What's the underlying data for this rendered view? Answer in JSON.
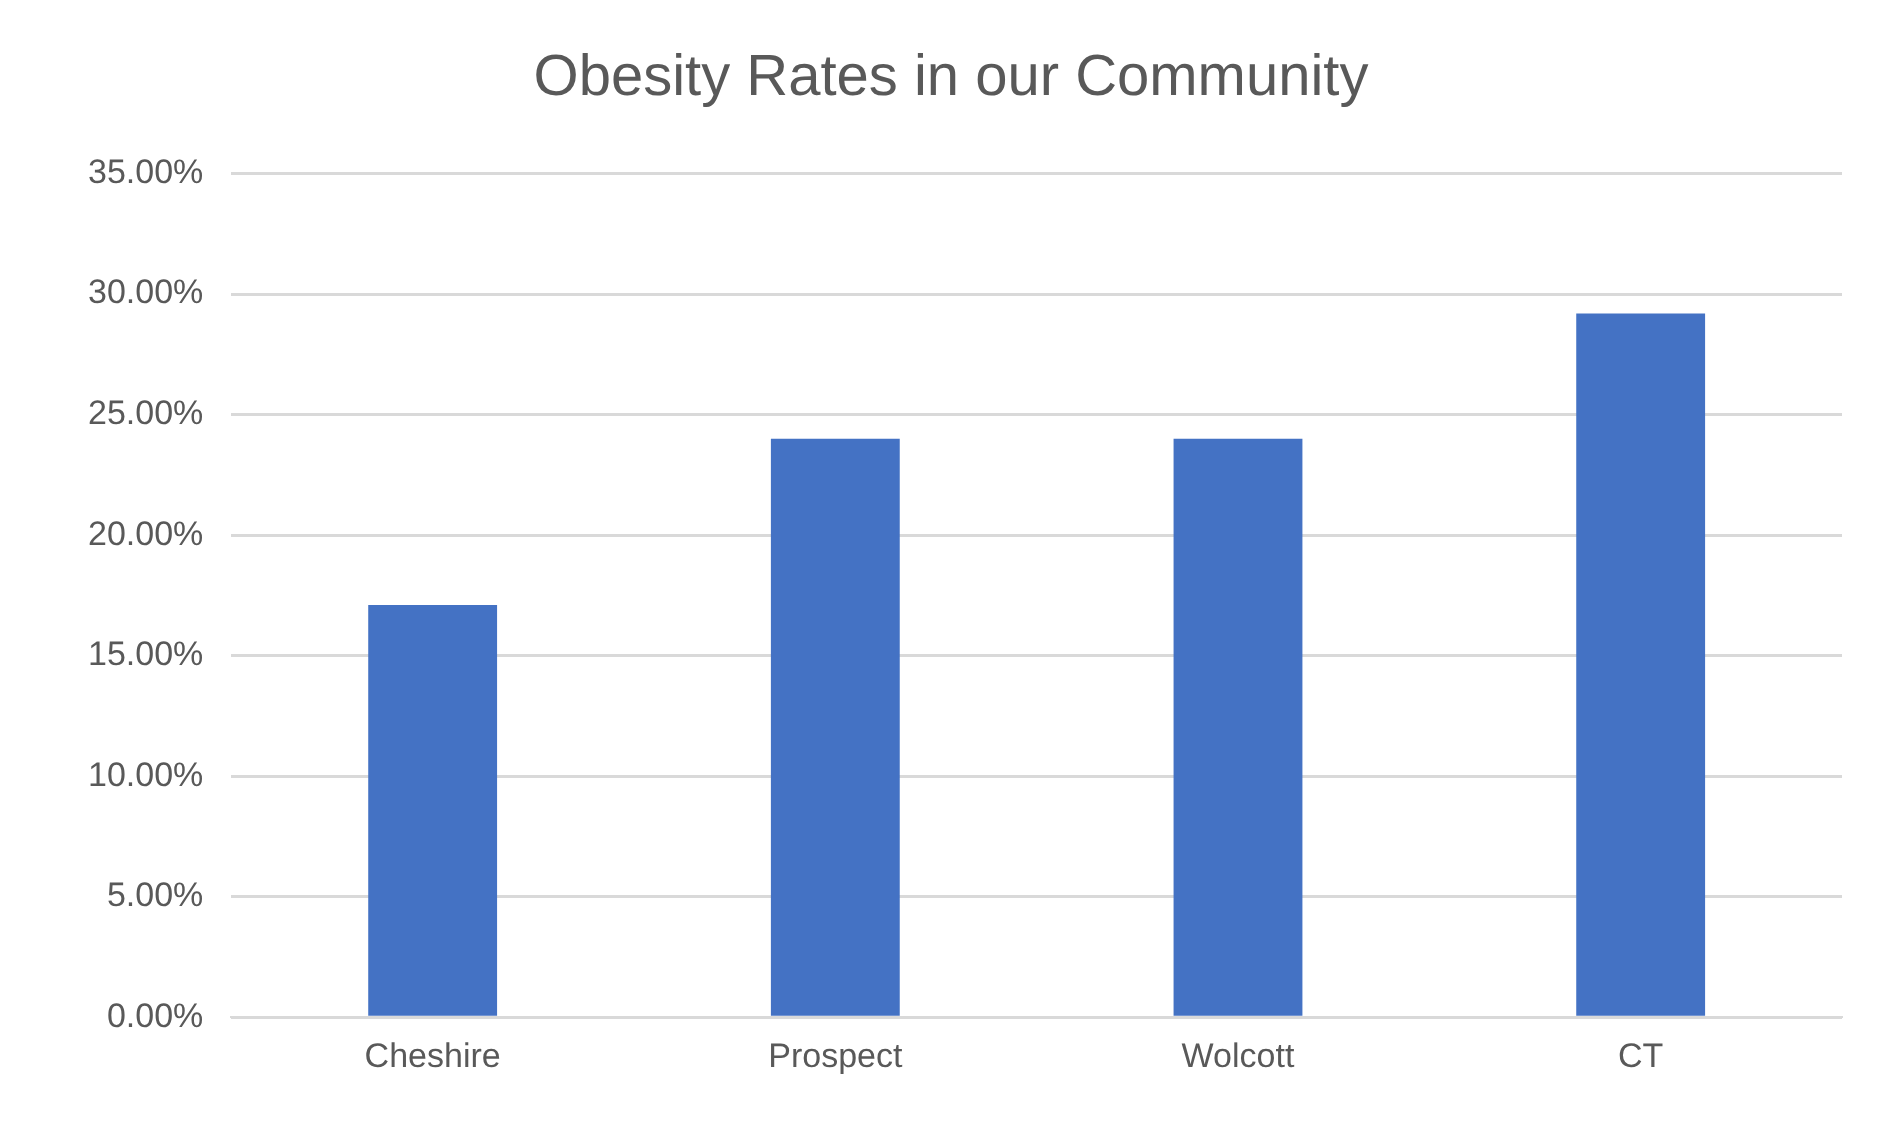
{
  "chart_data": {
    "type": "bar",
    "title": "Obesity Rates in our Community",
    "categories": [
      "Cheshire",
      "Prospect",
      "Wolcott",
      "CT"
    ],
    "values": [
      17.1,
      24.0,
      24.0,
      29.2
    ],
    "color": "#4472c4",
    "ylim": [
      0,
      35
    ],
    "yticks": [
      {
        "value": 0,
        "label": "0.00%"
      },
      {
        "value": 5,
        "label": "5.00%"
      },
      {
        "value": 10,
        "label": "10.00%"
      },
      {
        "value": 15,
        "label": "15.00%"
      },
      {
        "value": 20,
        "label": "20.00%"
      },
      {
        "value": 25,
        "label": "25.00%"
      },
      {
        "value": 30,
        "label": "30.00%"
      },
      {
        "value": 35,
        "label": "35.00%"
      }
    ],
    "grid": "y",
    "legend": false
  }
}
